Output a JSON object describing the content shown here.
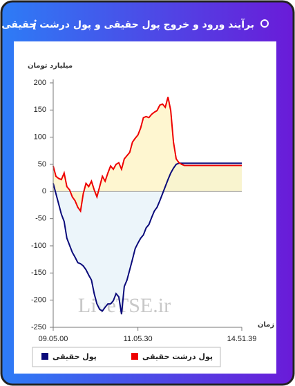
{
  "header": {
    "title": "برآیند ورود و خروج پول حقیقی و پول درشت حقیقی به بازار"
  },
  "chart_data": {
    "type": "area-line",
    "y_label": "میلیارد تومان",
    "x_label": "زمان",
    "watermark": "LiveTSE.ir",
    "x": [
      0,
      1,
      2,
      3,
      4,
      5,
      6,
      7,
      8,
      9,
      10,
      11,
      12,
      13,
      14,
      15,
      16,
      17,
      18,
      19,
      20,
      21,
      22,
      23,
      24,
      25,
      26,
      27,
      28,
      29,
      30,
      31,
      32,
      33,
      34,
      35,
      36,
      37,
      38,
      39,
      40,
      41,
      42,
      43,
      44,
      45,
      46,
      47,
      48,
      49,
      50,
      51,
      52,
      53,
      54,
      55,
      56,
      57,
      58,
      59,
      60,
      61,
      62,
      63,
      64,
      65,
      66,
      67,
      68,
      69
    ],
    "xlim": [
      0,
      69
    ],
    "xticks": [
      {
        "value": 0,
        "label": "09.05.00"
      },
      {
        "value": 31,
        "label": "11.05.30"
      },
      {
        "value": 69,
        "label": "14.51.39"
      }
    ],
    "ylim": [
      -250,
      200
    ],
    "yticks": [
      -250,
      -200,
      -150,
      -100,
      -50,
      0,
      50,
      100,
      150,
      200
    ],
    "series": [
      {
        "name": "پول حقیقی",
        "color": "#0a0a7a",
        "fill": "#e6f2f8",
        "values": [
          15,
          -4,
          -23,
          -42,
          -55,
          -86,
          -99,
          -112,
          -121,
          -131,
          -133,
          -137,
          -144,
          -154,
          -163,
          -188,
          -207,
          -217,
          -220,
          -213,
          -207,
          -207,
          -201,
          -188,
          -194,
          -226,
          -175,
          -163,
          -144,
          -125,
          -105,
          -95,
          -86,
          -80,
          -67,
          -61,
          -48,
          -36,
          -29,
          -17,
          -4,
          9,
          22,
          34,
          43,
          50,
          52,
          52,
          52,
          52,
          52,
          52,
          52,
          52,
          52,
          52,
          52,
          52,
          52,
          52,
          52,
          52,
          52,
          52,
          52,
          52,
          52,
          52,
          52,
          52
        ]
      },
      {
        "name": "پول درشت حقیقی",
        "color": "#ee0000",
        "fill": "#fdf3c0",
        "values": [
          47,
          28,
          24,
          22,
          34,
          9,
          3,
          -10,
          -17,
          -29,
          -36,
          -4,
          15,
          9,
          19,
          3,
          -10,
          9,
          28,
          19,
          34,
          47,
          41,
          50,
          53,
          41,
          60,
          66,
          72,
          91,
          98,
          104,
          117,
          136,
          138,
          136,
          142,
          146,
          149,
          159,
          161,
          155,
          174,
          149,
          91,
          60,
          53,
          50,
          48,
          48,
          48,
          48,
          48,
          48,
          48,
          48,
          48,
          48,
          48,
          48,
          48,
          48,
          48,
          48,
          48,
          48,
          48,
          48,
          48,
          48
        ]
      }
    ]
  }
}
